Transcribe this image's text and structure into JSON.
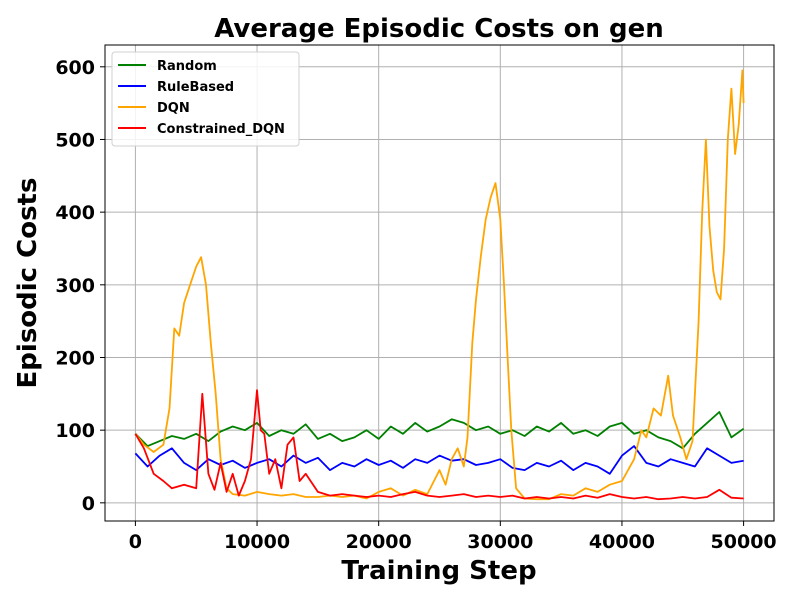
{
  "chart_data": {
    "type": "line",
    "title": "Average Episodic Costs on gen",
    "xlabel": "Training Step",
    "ylabel": "Episodic Costs",
    "xlim": [
      -2500,
      52500
    ],
    "ylim": [
      -25,
      630
    ],
    "xticks": [
      0,
      10000,
      20000,
      30000,
      40000,
      50000
    ],
    "yticks": [
      0,
      100,
      200,
      300,
      400,
      500,
      600
    ],
    "grid": true,
    "legend_position": "top-left",
    "series": [
      {
        "name": "Random",
        "color": "#008000",
        "points": [
          [
            0,
            95
          ],
          [
            1000,
            78
          ],
          [
            2000,
            85
          ],
          [
            3000,
            92
          ],
          [
            4000,
            88
          ],
          [
            5000,
            95
          ],
          [
            6000,
            85
          ],
          [
            7000,
            98
          ],
          [
            8000,
            105
          ],
          [
            9000,
            100
          ],
          [
            10000,
            110
          ],
          [
            11000,
            92
          ],
          [
            12000,
            100
          ],
          [
            13000,
            95
          ],
          [
            14000,
            108
          ],
          [
            15000,
            88
          ],
          [
            16000,
            95
          ],
          [
            17000,
            85
          ],
          [
            18000,
            90
          ],
          [
            19000,
            100
          ],
          [
            20000,
            88
          ],
          [
            21000,
            105
          ],
          [
            22000,
            95
          ],
          [
            23000,
            110
          ],
          [
            24000,
            98
          ],
          [
            25000,
            105
          ],
          [
            26000,
            115
          ],
          [
            27000,
            110
          ],
          [
            28000,
            100
          ],
          [
            29000,
            105
          ],
          [
            30000,
            95
          ],
          [
            31000,
            100
          ],
          [
            32000,
            92
          ],
          [
            33000,
            105
          ],
          [
            34000,
            98
          ],
          [
            35000,
            110
          ],
          [
            36000,
            95
          ],
          [
            37000,
            100
          ],
          [
            38000,
            92
          ],
          [
            39000,
            105
          ],
          [
            40000,
            110
          ],
          [
            41000,
            95
          ],
          [
            42000,
            100
          ],
          [
            43000,
            90
          ],
          [
            44000,
            85
          ],
          [
            45000,
            75
          ],
          [
            46000,
            95
          ],
          [
            47000,
            110
          ],
          [
            48000,
            125
          ],
          [
            49000,
            90
          ],
          [
            50000,
            102
          ]
        ]
      },
      {
        "name": "RuleBased",
        "color": "#0000ff",
        "points": [
          [
            0,
            68
          ],
          [
            1000,
            50
          ],
          [
            2000,
            65
          ],
          [
            3000,
            75
          ],
          [
            4000,
            55
          ],
          [
            5000,
            45
          ],
          [
            6000,
            60
          ],
          [
            7000,
            52
          ],
          [
            8000,
            58
          ],
          [
            9000,
            48
          ],
          [
            10000,
            55
          ],
          [
            11000,
            60
          ],
          [
            12000,
            50
          ],
          [
            13000,
            65
          ],
          [
            14000,
            55
          ],
          [
            15000,
            62
          ],
          [
            16000,
            45
          ],
          [
            17000,
            55
          ],
          [
            18000,
            50
          ],
          [
            19000,
            60
          ],
          [
            20000,
            52
          ],
          [
            21000,
            58
          ],
          [
            22000,
            48
          ],
          [
            23000,
            60
          ],
          [
            24000,
            55
          ],
          [
            25000,
            65
          ],
          [
            26000,
            58
          ],
          [
            27000,
            60
          ],
          [
            28000,
            52
          ],
          [
            29000,
            55
          ],
          [
            30000,
            60
          ],
          [
            31000,
            48
          ],
          [
            32000,
            45
          ],
          [
            33000,
            55
          ],
          [
            34000,
            50
          ],
          [
            35000,
            58
          ],
          [
            36000,
            45
          ],
          [
            37000,
            55
          ],
          [
            38000,
            50
          ],
          [
            39000,
            40
          ],
          [
            40000,
            65
          ],
          [
            41000,
            78
          ],
          [
            42000,
            55
          ],
          [
            43000,
            50
          ],
          [
            44000,
            60
          ],
          [
            45000,
            55
          ],
          [
            46000,
            50
          ],
          [
            47000,
            75
          ],
          [
            48000,
            65
          ],
          [
            49000,
            55
          ],
          [
            50000,
            58
          ]
        ]
      },
      {
        "name": "DQN",
        "color": "#ffa500",
        "points": [
          [
            0,
            95
          ],
          [
            700,
            80
          ],
          [
            1500,
            70
          ],
          [
            2300,
            80
          ],
          [
            2800,
            130
          ],
          [
            3200,
            240
          ],
          [
            3600,
            230
          ],
          [
            4000,
            275
          ],
          [
            4500,
            300
          ],
          [
            5000,
            325
          ],
          [
            5400,
            338
          ],
          [
            5800,
            300
          ],
          [
            6200,
            220
          ],
          [
            6600,
            150
          ],
          [
            7000,
            60
          ],
          [
            7500,
            20
          ],
          [
            8000,
            12
          ],
          [
            9000,
            10
          ],
          [
            10000,
            15
          ],
          [
            11000,
            12
          ],
          [
            12000,
            10
          ],
          [
            13000,
            12
          ],
          [
            14000,
            8
          ],
          [
            15000,
            8
          ],
          [
            16000,
            10
          ],
          [
            17000,
            8
          ],
          [
            18000,
            10
          ],
          [
            19000,
            6
          ],
          [
            20000,
            15
          ],
          [
            21000,
            20
          ],
          [
            22000,
            10
          ],
          [
            23000,
            18
          ],
          [
            24000,
            12
          ],
          [
            25000,
            45
          ],
          [
            25500,
            25
          ],
          [
            26000,
            60
          ],
          [
            26500,
            75
          ],
          [
            27000,
            50
          ],
          [
            27300,
            90
          ],
          [
            27700,
            220
          ],
          [
            28000,
            280
          ],
          [
            28400,
            340
          ],
          [
            28800,
            390
          ],
          [
            29200,
            420
          ],
          [
            29600,
            440
          ],
          [
            30000,
            390
          ],
          [
            30300,
            300
          ],
          [
            30600,
            200
          ],
          [
            30900,
            100
          ],
          [
            31300,
            20
          ],
          [
            32000,
            6
          ],
          [
            33000,
            5
          ],
          [
            34000,
            5
          ],
          [
            35000,
            12
          ],
          [
            36000,
            10
          ],
          [
            37000,
            20
          ],
          [
            38000,
            15
          ],
          [
            39000,
            25
          ],
          [
            40000,
            30
          ],
          [
            41000,
            60
          ],
          [
            41600,
            100
          ],
          [
            42000,
            90
          ],
          [
            42600,
            130
          ],
          [
            43200,
            120
          ],
          [
            43800,
            175
          ],
          [
            44200,
            120
          ],
          [
            44800,
            90
          ],
          [
            45300,
            60
          ],
          [
            45800,
            85
          ],
          [
            46300,
            250
          ],
          [
            46600,
            400
          ],
          [
            46900,
            500
          ],
          [
            47200,
            380
          ],
          [
            47500,
            320
          ],
          [
            47800,
            290
          ],
          [
            48100,
            280
          ],
          [
            48400,
            350
          ],
          [
            48700,
            500
          ],
          [
            49000,
            570
          ],
          [
            49300,
            480
          ],
          [
            49600,
            520
          ],
          [
            49900,
            595
          ],
          [
            50000,
            550
          ]
        ]
      },
      {
        "name": "Constrained_DQN",
        "color": "#ff0000",
        "points": [
          [
            0,
            95
          ],
          [
            700,
            75
          ],
          [
            1500,
            40
          ],
          [
            2300,
            30
          ],
          [
            3000,
            20
          ],
          [
            4000,
            25
          ],
          [
            5000,
            20
          ],
          [
            5500,
            150
          ],
          [
            6000,
            40
          ],
          [
            6500,
            18
          ],
          [
            7000,
            55
          ],
          [
            7500,
            15
          ],
          [
            8000,
            40
          ],
          [
            8500,
            10
          ],
          [
            9000,
            30
          ],
          [
            9500,
            60
          ],
          [
            10000,
            155
          ],
          [
            10300,
            100
          ],
          [
            10600,
            95
          ],
          [
            11000,
            40
          ],
          [
            11500,
            60
          ],
          [
            12000,
            20
          ],
          [
            12500,
            80
          ],
          [
            13000,
            90
          ],
          [
            13500,
            30
          ],
          [
            14000,
            40
          ],
          [
            15000,
            15
          ],
          [
            16000,
            10
          ],
          [
            17000,
            12
          ],
          [
            18000,
            10
          ],
          [
            19000,
            8
          ],
          [
            20000,
            10
          ],
          [
            21000,
            8
          ],
          [
            22000,
            12
          ],
          [
            23000,
            15
          ],
          [
            24000,
            10
          ],
          [
            25000,
            8
          ],
          [
            26000,
            10
          ],
          [
            27000,
            12
          ],
          [
            28000,
            8
          ],
          [
            29000,
            10
          ],
          [
            30000,
            8
          ],
          [
            31000,
            10
          ],
          [
            32000,
            6
          ],
          [
            33000,
            8
          ],
          [
            34000,
            6
          ],
          [
            35000,
            8
          ],
          [
            36000,
            6
          ],
          [
            37000,
            10
          ],
          [
            38000,
            7
          ],
          [
            39000,
            12
          ],
          [
            40000,
            8
          ],
          [
            41000,
            6
          ],
          [
            42000,
            8
          ],
          [
            43000,
            5
          ],
          [
            44000,
            6
          ],
          [
            45000,
            8
          ],
          [
            46000,
            6
          ],
          [
            47000,
            8
          ],
          [
            48000,
            18
          ],
          [
            49000,
            7
          ],
          [
            50000,
            6
          ]
        ]
      }
    ]
  }
}
